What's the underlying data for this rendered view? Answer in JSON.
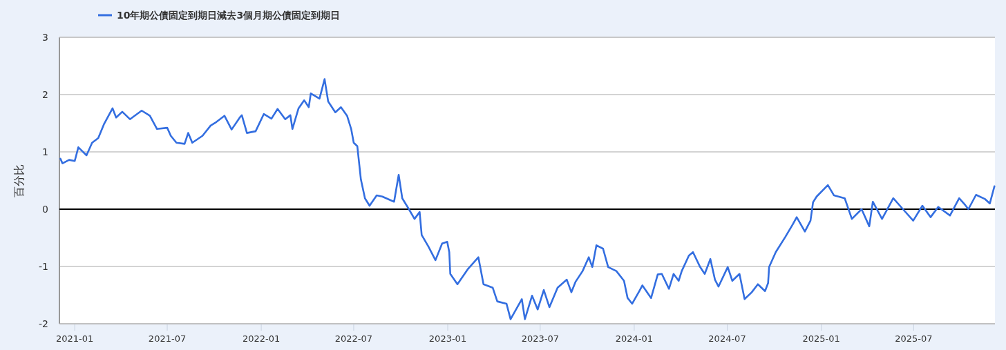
{
  "chart_data": {
    "type": "line",
    "ylabel": "百分比",
    "legend": "top left",
    "grid": "y",
    "xlim": [
      "2020-12-02",
      "2025-12-07"
    ],
    "ylim": [
      -2,
      3
    ],
    "xticks": [
      "2021-01",
      "2021-07",
      "2022-01",
      "2022-07",
      "2023-01",
      "2023-07",
      "2024-01",
      "2024-07",
      "2025-01",
      "2025-07"
    ],
    "yticks": [
      -2,
      -1,
      0,
      1,
      2,
      3
    ],
    "ref_lines": [
      {
        "axis": "y",
        "value": 0,
        "color": "#000000"
      }
    ],
    "x": [
      "2020-12-04",
      "2020-12-08",
      "2020-12-21",
      "2021-01-01",
      "2021-01-08",
      "2021-01-24",
      "2021-02-04",
      "2021-02-16",
      "2021-02-27",
      "2021-03-16",
      "2021-03-23",
      "2021-04-04",
      "2021-04-19",
      "2021-05-12",
      "2021-05-28",
      "2021-06-11",
      "2021-07-01",
      "2021-07-08",
      "2021-07-19",
      "2021-08-04",
      "2021-08-11",
      "2021-08-19",
      "2021-09-08",
      "2021-09-24",
      "2021-10-05",
      "2021-10-21",
      "2021-11-04",
      "2021-11-20",
      "2021-11-24",
      "2021-12-04",
      "2021-12-21",
      "2022-01-06",
      "2022-01-21",
      "2022-02-02",
      "2022-02-17",
      "2022-02-27",
      "2022-03-03",
      "2022-03-15",
      "2022-03-26",
      "2022-04-04",
      "2022-04-08",
      "2022-04-25",
      "2022-05-05",
      "2022-05-12",
      "2022-05-26",
      "2022-06-06",
      "2022-06-18",
      "2022-06-26",
      "2022-07-01",
      "2022-07-08",
      "2022-07-15",
      "2022-07-23",
      "2022-08-01",
      "2022-08-15",
      "2022-08-26",
      "2022-09-18",
      "2022-09-27",
      "2022-10-04",
      "2022-10-17",
      "2022-10-28",
      "2022-11-07",
      "2022-11-11",
      "2022-11-24",
      "2022-12-08",
      "2022-12-21",
      "2022-12-31",
      "2023-01-04",
      "2023-01-06",
      "2023-01-20",
      "2023-02-09",
      "2023-03-02",
      "2023-03-12",
      "2023-03-30",
      "2023-04-08",
      "2023-04-26",
      "2023-05-04",
      "2023-05-26",
      "2023-06-01",
      "2023-06-15",
      "2023-06-26",
      "2023-07-08",
      "2023-07-19",
      "2023-08-04",
      "2023-08-22",
      "2023-08-31",
      "2023-09-08",
      "2023-09-22",
      "2023-10-04",
      "2023-10-11",
      "2023-10-19",
      "2023-11-01",
      "2023-11-11",
      "2023-11-27",
      "2023-12-12",
      "2023-12-19",
      "2023-12-28",
      "2024-01-11",
      "2024-01-17",
      "2024-02-03",
      "2024-02-16",
      "2024-02-24",
      "2024-03-09",
      "2024-03-18",
      "2024-03-28",
      "2024-04-03",
      "2024-04-17",
      "2024-04-25",
      "2024-05-09",
      "2024-05-18",
      "2024-05-29",
      "2024-06-07",
      "2024-06-14",
      "2024-07-02",
      "2024-07-11",
      "2024-07-25",
      "2024-08-04",
      "2024-08-18",
      "2024-08-30",
      "2024-09-13",
      "2024-09-19",
      "2024-09-21",
      "2024-10-04",
      "2024-10-23",
      "2024-11-06",
      "2024-11-14",
      "2024-11-30",
      "2024-12-11",
      "2024-12-16",
      "2024-12-23",
      "2025-01-14",
      "2025-01-26",
      "2025-02-16",
      "2025-03-02",
      "2025-03-21",
      "2025-04-05",
      "2025-04-12",
      "2025-04-30",
      "2025-05-22",
      "2025-06-10",
      "2025-06-30",
      "2025-07-18",
      "2025-08-03",
      "2025-08-18",
      "2025-09-10",
      "2025-09-28",
      "2025-10-10",
      "2025-10-16",
      "2025-10-31",
      "2025-11-17",
      "2025-11-27",
      "2025-12-06"
    ],
    "series": [
      {
        "name": "10年期公債固定到期日減去3個月期公債固定到期日",
        "color": "#336ee0",
        "values": [
          0.88,
          0.8,
          0.86,
          0.84,
          1.08,
          0.94,
          1.16,
          1.24,
          1.48,
          1.76,
          1.6,
          1.7,
          1.57,
          1.72,
          1.63,
          1.4,
          1.42,
          1.28,
          1.16,
          1.14,
          1.33,
          1.16,
          1.28,
          1.46,
          1.52,
          1.63,
          1.39,
          1.6,
          1.64,
          1.33,
          1.36,
          1.66,
          1.58,
          1.75,
          1.57,
          1.64,
          1.4,
          1.76,
          1.9,
          1.78,
          2.02,
          1.93,
          2.27,
          1.88,
          1.69,
          1.78,
          1.63,
          1.4,
          1.16,
          1.1,
          0.52,
          0.19,
          0.06,
          0.24,
          0.22,
          0.13,
          0.6,
          0.19,
          0.0,
          -0.17,
          -0.05,
          -0.45,
          -0.65,
          -0.89,
          -0.6,
          -0.57,
          -0.75,
          -1.13,
          -1.31,
          -1.05,
          -0.84,
          -1.31,
          -1.37,
          -1.61,
          -1.65,
          -1.92,
          -1.57,
          -1.92,
          -1.51,
          -1.75,
          -1.41,
          -1.71,
          -1.37,
          -1.23,
          -1.45,
          -1.27,
          -1.08,
          -0.84,
          -1.01,
          -0.63,
          -0.69,
          -1.01,
          -1.08,
          -1.25,
          -1.55,
          -1.65,
          -1.43,
          -1.33,
          -1.55,
          -1.14,
          -1.13,
          -1.39,
          -1.13,
          -1.25,
          -1.08,
          -0.81,
          -0.75,
          -1.01,
          -1.13,
          -0.87,
          -1.23,
          -1.35,
          -1.01,
          -1.25,
          -1.13,
          -1.57,
          -1.45,
          -1.31,
          -1.43,
          -1.29,
          -1.01,
          -0.75,
          -0.48,
          -0.27,
          -0.14,
          -0.39,
          -0.2,
          0.12,
          0.22,
          0.42,
          0.24,
          0.19,
          -0.17,
          0.0,
          -0.3,
          0.13,
          -0.17,
          0.19,
          0.0,
          -0.2,
          0.06,
          -0.14,
          0.04,
          -0.11,
          0.19,
          0.07,
          0.0,
          0.25,
          0.18,
          0.1,
          0.4
        ]
      }
    ]
  }
}
